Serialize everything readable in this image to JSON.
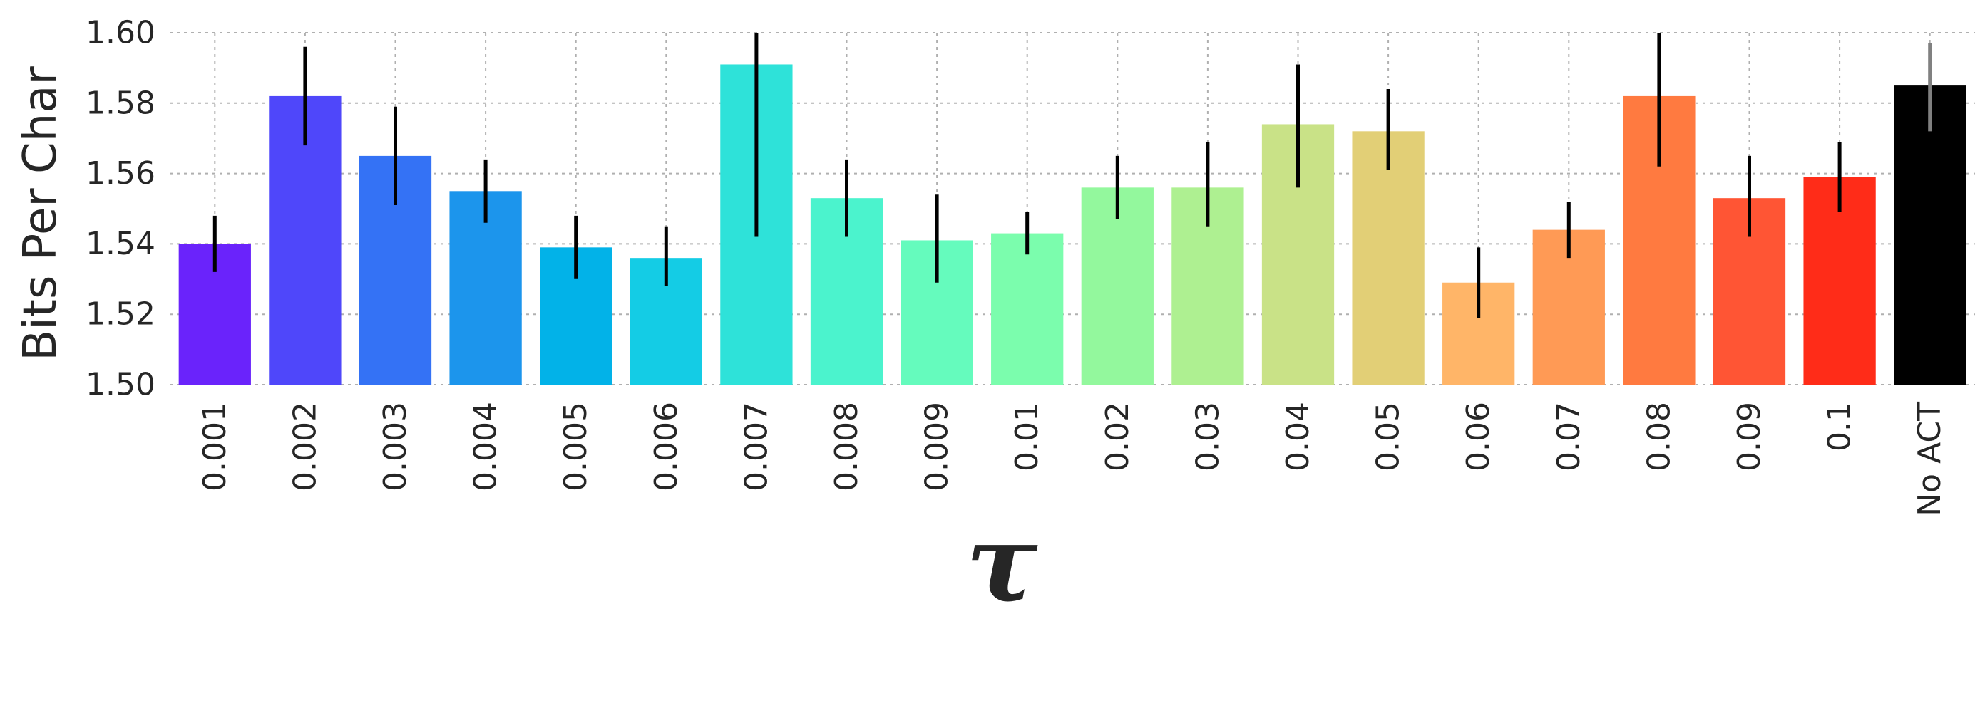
{
  "chart_data": {
    "type": "bar",
    "title": "",
    "xlabel": "τ",
    "ylabel": "Bits Per Char",
    "ylim": [
      1.5,
      1.6
    ],
    "yticks": [
      "1.50",
      "1.52",
      "1.54",
      "1.56",
      "1.58",
      "1.60"
    ],
    "grid": true,
    "categories": [
      "0.001",
      "0.002",
      "0.003",
      "0.004",
      "0.005",
      "0.006",
      "0.007",
      "0.008",
      "0.009",
      "0.01",
      "0.02",
      "0.03",
      "0.04",
      "0.05",
      "0.06",
      "0.07",
      "0.08",
      "0.09",
      "0.1",
      "No ACT"
    ],
    "values": [
      1.54,
      1.582,
      1.565,
      1.555,
      1.539,
      1.536,
      1.591,
      1.553,
      1.541,
      1.543,
      1.556,
      1.556,
      1.574,
      1.572,
      1.529,
      1.544,
      1.582,
      1.553,
      1.559,
      1.585
    ],
    "error_low": [
      1.532,
      1.568,
      1.551,
      1.546,
      1.53,
      1.528,
      1.542,
      1.542,
      1.529,
      1.537,
      1.547,
      1.545,
      1.556,
      1.561,
      1.519,
      1.536,
      1.562,
      1.542,
      1.549,
      1.572
    ],
    "error_high": [
      1.548,
      1.596,
      1.579,
      1.564,
      1.548,
      1.545,
      1.6,
      1.564,
      1.554,
      1.549,
      1.565,
      1.569,
      1.591,
      1.584,
      1.539,
      1.552,
      1.6,
      1.565,
      1.569,
      1.597
    ],
    "colors": [
      "#6a23fb",
      "#4f47fa",
      "#3472f5",
      "#1c95ec",
      "#02b2e8",
      "#14cce5",
      "#2ee2d9",
      "#4bf3cd",
      "#65fbbd",
      "#7bfdad",
      "#93f89d",
      "#aef091",
      "#c9e287",
      "#e2cf76",
      "#ffb568",
      "#ff9a55",
      "#ff7a40",
      "#ff5534",
      "#ff2c18",
      "#000000"
    ],
    "errorbar_colors": [
      "#000000",
      "#000000",
      "#000000",
      "#000000",
      "#000000",
      "#000000",
      "#000000",
      "#000000",
      "#000000",
      "#000000",
      "#000000",
      "#000000",
      "#000000",
      "#000000",
      "#000000",
      "#000000",
      "#000000",
      "#000000",
      "#000000",
      "#808080"
    ]
  }
}
